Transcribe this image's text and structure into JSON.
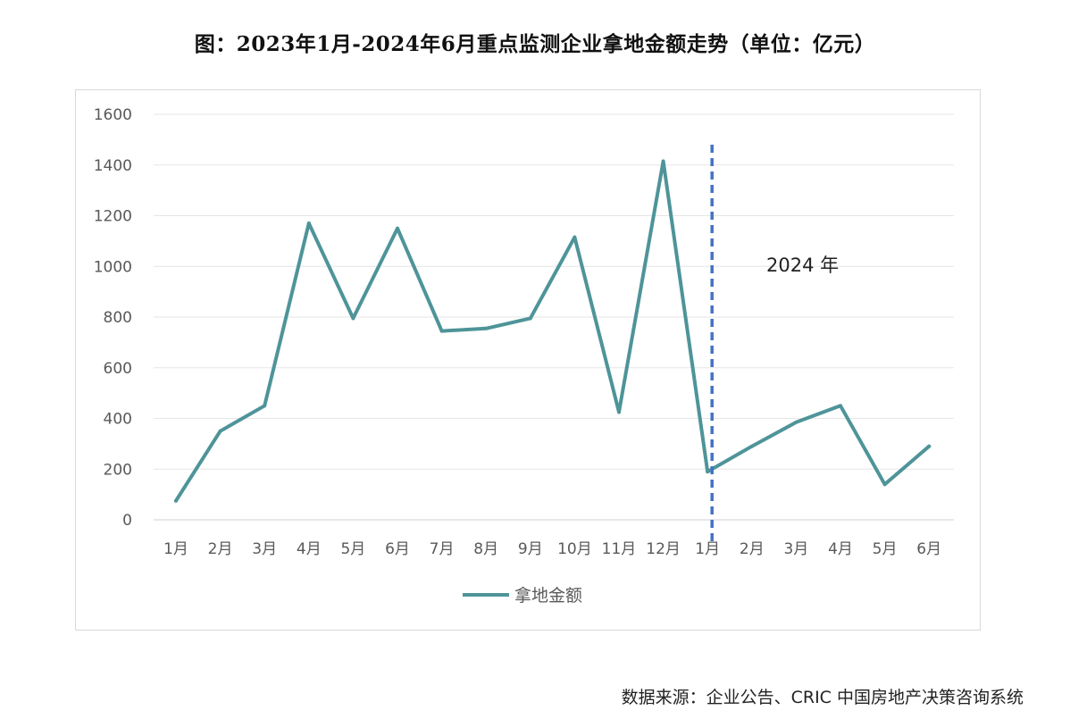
{
  "title": "图：2023年1月-2024年6月重点监测企业拿地金额走势（单位：亿元）",
  "source": "数据来源：企业公告、CRIC 中国房地产决策咨询系统",
  "colors": {
    "series": "#4e9499",
    "divider": "#4472c4",
    "grid": "#e6e6e6",
    "axis_text": "#595959"
  },
  "chart_data": {
    "type": "line",
    "categories": [
      "1月",
      "2月",
      "3月",
      "4月",
      "5月",
      "6月",
      "7月",
      "8月",
      "9月",
      "10月",
      "11月",
      "12月",
      "1月",
      "2月",
      "3月",
      "4月",
      "5月",
      "6月"
    ],
    "series": [
      {
        "name": "拿地金额",
        "values": [
          75,
          350,
          450,
          1170,
          795,
          1150,
          745,
          755,
          795,
          1115,
          425,
          1415,
          190,
          290,
          385,
          450,
          140,
          290
        ]
      }
    ],
    "ylim": [
      0,
      1600
    ],
    "yticks": [
      0,
      200,
      400,
      600,
      800,
      1000,
      1200,
      1400,
      1600
    ],
    "grid": "horizontal",
    "legend": "bottom",
    "divider_after_index": 12,
    "annotation": "2024 年"
  }
}
